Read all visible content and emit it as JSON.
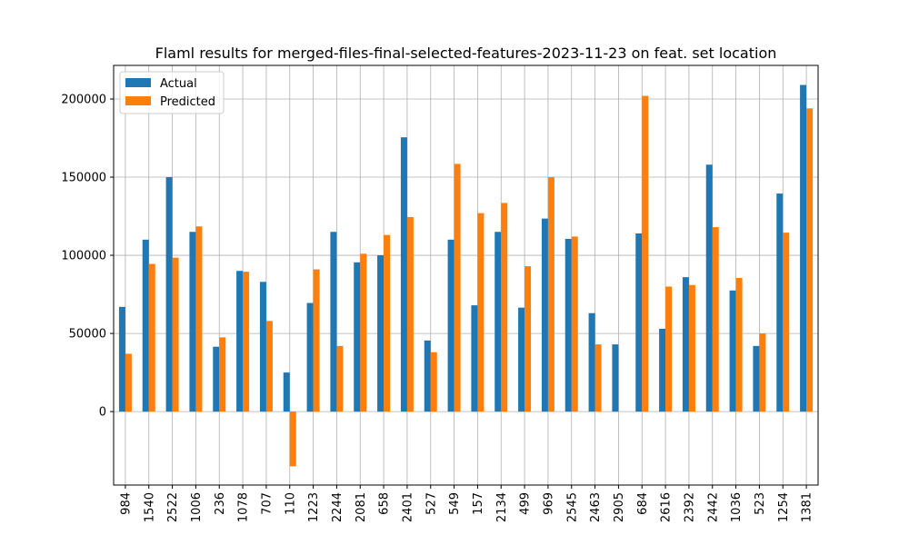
{
  "chart_data": {
    "type": "bar",
    "title": "Flaml results for merged-files-final-selected-features-2023-11-23 on feat. set location",
    "xlabel": "",
    "ylabel": "",
    "categories": [
      "984",
      "1540",
      "2522",
      "1006",
      "236",
      "1078",
      "707",
      "110",
      "1223",
      "2244",
      "2081",
      "658",
      "2401",
      "527",
      "549",
      "157",
      "2134",
      "499",
      "969",
      "2545",
      "2463",
      "2905",
      "684",
      "2616",
      "2392",
      "2442",
      "1036",
      "523",
      "1254",
      "1381"
    ],
    "series": [
      {
        "name": "Actual",
        "color": "#1f77b4",
        "values": [
          67000,
          110000,
          150000,
          115000,
          41500,
          90000,
          83000,
          25000,
          69500,
          115000,
          95500,
          100000,
          175500,
          45500,
          110000,
          68000,
          115000,
          66500,
          123500,
          110500,
          63000,
          43000,
          114000,
          53000,
          86000,
          158000,
          77500,
          42000,
          139500,
          209000
        ]
      },
      {
        "name": "Predicted",
        "color": "#ff7f0e",
        "values": [
          37000,
          94500,
          98500,
          118500,
          47500,
          89500,
          58000,
          -35000,
          91000,
          42000,
          101000,
          113000,
          124500,
          38000,
          158500,
          127000,
          133500,
          93000,
          150000,
          112000,
          43000,
          0,
          202000,
          80000,
          81000,
          118000,
          85500,
          50000,
          114500,
          194000
        ]
      }
    ],
    "ylim": [
      -47000,
      221500
    ],
    "yticks": [
      0,
      50000,
      100000,
      150000,
      200000
    ],
    "ytick_labels": [
      "0",
      "50000",
      "100000",
      "150000",
      "200000"
    ],
    "grid": true,
    "legend": "upper-left"
  }
}
